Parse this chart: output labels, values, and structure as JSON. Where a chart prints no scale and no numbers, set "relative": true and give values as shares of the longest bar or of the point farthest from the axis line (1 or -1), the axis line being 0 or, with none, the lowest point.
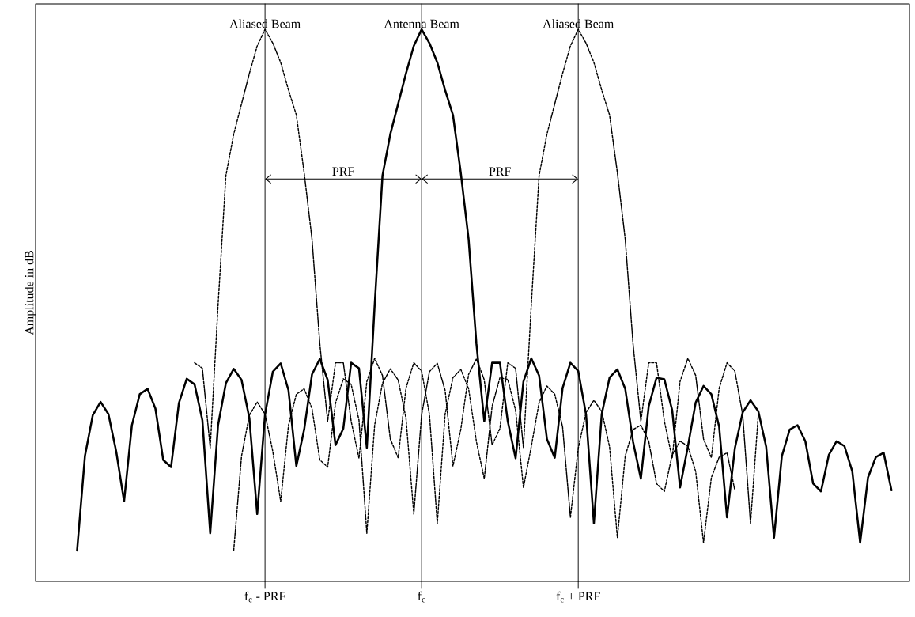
{
  "chart_data": {
    "type": "line",
    "relative": true,
    "ylabel": "Amplitude in dB",
    "marker": "none",
    "grid": "x",
    "categories": [
      null,
      null,
      null,
      null,
      null,
      null,
      null,
      null,
      null,
      null,
      null,
      null,
      null,
      null,
      null,
      null,
      null,
      null,
      null,
      null,
      null,
      null,
      null,
      null,
      null,
      "f$_{c}$ - PRF",
      null,
      null,
      null,
      null,
      null,
      null,
      null,
      null,
      null,
      null,
      null,
      null,
      null,
      null,
      null,
      null,
      null,
      null,
      null,
      "f$_{c}$",
      null,
      null,
      null,
      null,
      null,
      null,
      null,
      null,
      null,
      null,
      null,
      null,
      null,
      null,
      null,
      null,
      null,
      null,
      null,
      "f$_{c}$ + PRF",
      null,
      null,
      null,
      null,
      null,
      null,
      null,
      null,
      null,
      null,
      null,
      null,
      null,
      null,
      null,
      null,
      null,
      null,
      null,
      null,
      null,
      null,
      null,
      null,
      null,
      null,
      null,
      null,
      null,
      null,
      null,
      null,
      null,
      null,
      null,
      null,
      null,
      null,
      null,
      null
    ],
    "annotations": [
      "PRF",
      "PRF"
    ],
    "series": [
      {
        "name": "Aliased Beam",
        "color": "#000000",
        "line_style": "dashed",
        "values": [
          null,
          null,
          null,
          null,
          null,
          null,
          null,
          null,
          null,
          null,
          null,
          null,
          null,
          null,
          null,
          null,
          0.396,
          0.386,
          0.242,
          0.5,
          0.735,
          0.81,
          0.865,
          0.92,
          0.97,
          1.0,
          0.975,
          0.94,
          0.89,
          0.845,
          0.74,
          0.62,
          0.43,
          0.29,
          0.396,
          0.396,
          0.29,
          0.223,
          0.362,
          0.404,
          0.373,
          0.258,
          0.224,
          0.35,
          0.396,
          0.381,
          0.302,
          0.105,
          0.303,
          0.369,
          0.384,
          0.349,
          0.253,
          0.186,
          0.317,
          0.369,
          0.366,
          0.31,
          0.17,
          0.244,
          0.324,
          0.354,
          0.339,
          0.28,
          0.116,
          0.241,
          0.306,
          0.328,
          0.308,
          0.244,
          0.079,
          0.227,
          0.275,
          0.283,
          0.254,
          0.177,
          0.163,
          0.229,
          0.254,
          0.245,
          0.199,
          0.07,
          0.188,
          0.225,
          0.233,
          0.165,
          null,
          null,
          null,
          null,
          null,
          null,
          null,
          null,
          null,
          null,
          null,
          null,
          null,
          null,
          null,
          null,
          null,
          null,
          null,
          null
        ]
      },
      {
        "name": "Antenna Beam",
        "color": "#000000",
        "line_style": "solid",
        "values": [
          null,
          0.056,
          0.227,
          0.301,
          0.325,
          0.303,
          0.235,
          0.145,
          0.283,
          0.339,
          0.349,
          0.313,
          0.22,
          0.207,
          0.323,
          0.367,
          0.357,
          0.292,
          0.087,
          0.283,
          0.359,
          0.385,
          0.365,
          0.296,
          0.122,
          0.302,
          0.38,
          0.395,
          0.346,
          0.209,
          0.275,
          0.375,
          0.403,
          0.365,
          0.247,
          0.277,
          0.396,
          0.386,
          0.242,
          0.5,
          0.735,
          0.81,
          0.865,
          0.92,
          0.97,
          1.0,
          0.975,
          0.94,
          0.89,
          0.845,
          0.74,
          0.62,
          0.43,
          0.29,
          0.396,
          0.396,
          0.29,
          0.223,
          0.362,
          0.404,
          0.373,
          0.258,
          0.224,
          0.35,
          0.396,
          0.381,
          0.302,
          0.105,
          0.303,
          0.369,
          0.384,
          0.349,
          0.253,
          0.186,
          0.317,
          0.369,
          0.366,
          0.31,
          0.17,
          0.244,
          0.324,
          0.354,
          0.339,
          0.28,
          0.116,
          0.241,
          0.306,
          0.328,
          0.308,
          0.244,
          0.079,
          0.227,
          0.275,
          0.283,
          0.254,
          0.177,
          0.163,
          0.229,
          0.254,
          0.245,
          0.199,
          0.07,
          0.188,
          0.225,
          0.233,
          0.165
        ]
      },
      {
        "name": "Aliased Beam",
        "color": "#000000",
        "line_style": "dashed",
        "values": [
          null,
          null,
          null,
          null,
          null,
          null,
          null,
          null,
          null,
          null,
          null,
          null,
          null,
          null,
          null,
          null,
          null,
          null,
          null,
          null,
          null,
          0.056,
          0.227,
          0.301,
          0.325,
          0.303,
          0.235,
          0.145,
          0.283,
          0.339,
          0.349,
          0.313,
          0.22,
          0.207,
          0.323,
          0.367,
          0.357,
          0.292,
          0.087,
          0.283,
          0.359,
          0.385,
          0.365,
          0.296,
          0.122,
          0.302,
          0.38,
          0.395,
          0.346,
          0.209,
          0.275,
          0.375,
          0.403,
          0.365,
          0.247,
          0.277,
          0.396,
          0.386,
          0.242,
          0.5,
          0.735,
          0.81,
          0.865,
          0.92,
          0.97,
          1.0,
          0.975,
          0.94,
          0.89,
          0.845,
          0.74,
          0.62,
          0.43,
          0.29,
          0.396,
          0.396,
          0.29,
          0.223,
          0.362,
          0.404,
          0.373,
          0.258,
          0.224,
          0.35,
          0.396,
          0.381,
          0.302,
          0.105,
          0.303,
          null,
          null,
          null,
          null,
          null,
          null,
          null,
          null,
          null,
          null,
          null,
          null,
          null,
          null,
          null,
          null,
          null
        ]
      }
    ]
  }
}
